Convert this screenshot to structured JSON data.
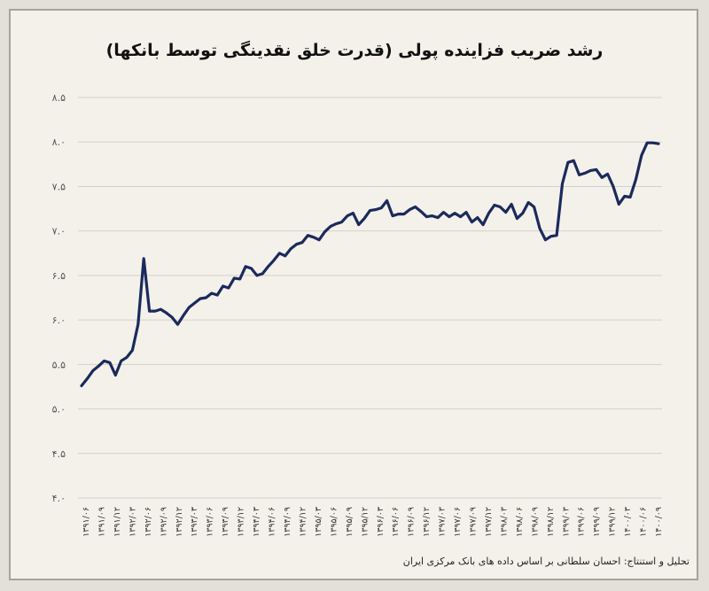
{
  "chart_data": {
    "type": "line",
    "title": "رشد ضریب فزاینده پولی (قدرت خلق نقدینگی توسط بانکها)",
    "credit": "تحلیل و استنتاج: احسان سلطانی بر اساس داده های بانک مرکزی ایران",
    "xlabel": "",
    "ylabel": "",
    "ylim": [
      4.0,
      8.5
    ],
    "yticks": [
      "۴.۰",
      "۴.۵",
      "۵.۰",
      "۵.۵",
      "۶.۰",
      "۶.۵",
      "۷.۰",
      "۷.۵",
      "۸.۰",
      "۸.۵"
    ],
    "grid": true,
    "line_color": "#1b2a5c",
    "grid_color": "#d5d1c9",
    "xtick_labels": [
      "۱۳۹۱/۰۶",
      "۱۳۹۱/۰۹",
      "۱۳۹۱/۱۲",
      "۱۳۹۲/۰۳",
      "۱۳۹۲/۰۶",
      "۱۳۹۲/۰۹",
      "۱۳۹۲/۱۲",
      "۱۳۹۳/۰۳",
      "۱۳۹۳/۰۶",
      "۱۳۹۳/۰۹",
      "۱۳۹۳/۱۲",
      "۱۳۹۴/۰۳",
      "۱۳۹۴/۰۶",
      "۱۳۹۴/۰۹",
      "۱۳۹۴/۱۲",
      "۱۳۹۵/۰۳",
      "۱۳۹۵/۰۶",
      "۱۳۹۵/۰۹",
      "۱۳۹۵/۱۲",
      "۱۳۹۶/۰۳",
      "۱۳۹۶/۰۶",
      "۱۳۹۶/۰۹",
      "۱۳۹۶/۱۲",
      "۱۳۹۷/۰۳",
      "۱۳۹۷/۰۶",
      "۱۳۹۷/۰۹",
      "۱۳۹۷/۱۲",
      "۱۳۹۸/۰۳",
      "۱۳۹۸/۰۶",
      "۱۳۹۸/۰۹",
      "۱۳۹۸/۱۲",
      "۱۳۹۹/۰۳",
      "۱۳۹۹/۰۶",
      "۱۳۹۹/۰۹",
      "۱۳۹۹/۱۲",
      "۱۴۰۰/۰۳",
      "۱۴۰۰/۰۶",
      "۱۴۰۰/۰۹"
    ],
    "values": [
      5.26,
      5.34,
      5.43,
      5.48,
      5.54,
      5.52,
      5.38,
      5.54,
      5.58,
      5.66,
      5.95,
      6.69,
      6.1,
      6.1,
      6.12,
      6.08,
      6.03,
      5.95,
      6.05,
      6.14,
      6.19,
      6.24,
      6.25,
      6.3,
      6.28,
      6.38,
      6.36,
      6.47,
      6.46,
      6.6,
      6.58,
      6.5,
      6.52,
      6.6,
      6.67,
      6.75,
      6.72,
      6.8,
      6.85,
      6.87,
      6.95,
      6.93,
      6.9,
      6.99,
      7.05,
      7.08,
      7.1,
      7.17,
      7.2,
      7.07,
      7.14,
      7.23,
      7.24,
      7.26,
      7.34,
      7.17,
      7.19,
      7.19,
      7.24,
      7.27,
      7.22,
      7.16,
      7.17,
      7.15,
      7.21,
      7.16,
      7.2,
      7.16,
      7.21,
      7.1,
      7.15,
      7.07,
      7.2,
      7.29,
      7.27,
      7.21,
      7.3,
      7.14,
      7.2,
      7.32,
      7.27,
      7.03,
      6.9,
      6.94,
      6.95,
      7.53,
      7.77,
      7.79,
      7.63,
      7.65,
      7.68,
      7.69,
      7.6,
      7.64,
      7.5,
      7.3,
      7.39,
      7.38,
      7.58,
      7.85,
      7.99,
      7.99,
      7.98
    ]
  }
}
